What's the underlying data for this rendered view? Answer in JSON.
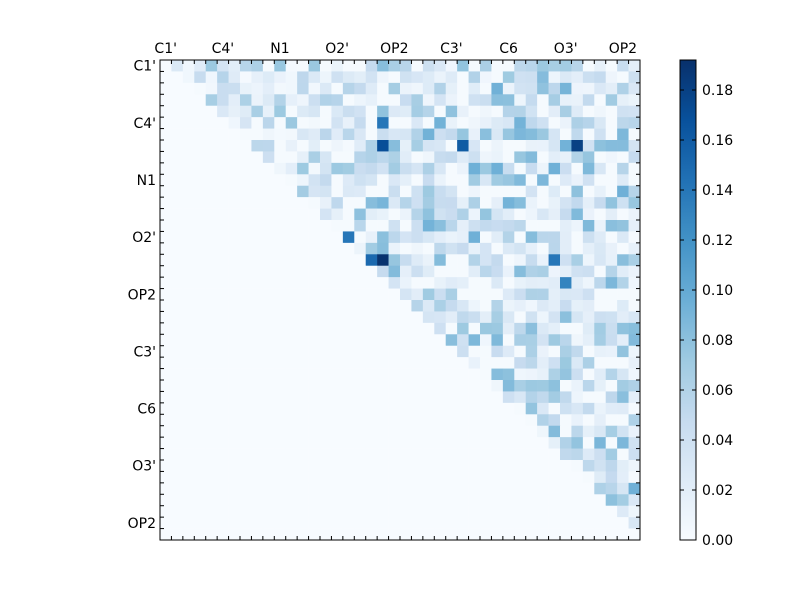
{
  "chart_data": {
    "type": "heatmap",
    "title": "",
    "xlabel": "",
    "ylabel": "",
    "x_tick_labels": [
      "C1'",
      "C4'",
      "N1",
      "O2'",
      "OP2",
      "C3'",
      "C6",
      "O3'",
      "OP2"
    ],
    "y_tick_labels": [
      "C1'",
      "C4'",
      "N1",
      "O2'",
      "OP2",
      "C3'",
      "C6",
      "O3'",
      "OP2"
    ],
    "x_axis_position": "top",
    "grid": false,
    "colormap": "Blues",
    "colorbar": {
      "min": 0.0,
      "max": 0.192,
      "ticks": [
        0.0,
        0.02,
        0.04,
        0.06,
        0.08,
        0.1,
        0.12,
        0.14,
        0.16,
        0.18
      ],
      "tick_labels": [
        "0.00",
        "0.02",
        "0.04",
        "0.06",
        "0.08",
        "0.10",
        "0.12",
        "0.14",
        "0.16",
        "0.18"
      ]
    },
    "grid_size": 42,
    "structure": "upper-triangular matrix; cells below the diagonal are 0",
    "notable_values": [
      {
        "row": 7,
        "col": 19,
        "value": 0.17
      },
      {
        "row": 7,
        "col": 26,
        "value": 0.16
      },
      {
        "row": 7,
        "col": 36,
        "value": 0.18
      },
      {
        "row": 17,
        "col": 19,
        "value": 0.19
      },
      {
        "row": 17,
        "col": 18,
        "value": 0.15
      },
      {
        "row": 15,
        "col": 16,
        "value": 0.14
      },
      {
        "row": 17,
        "col": 34,
        "value": 0.14
      },
      {
        "row": 19,
        "col": 35,
        "value": 0.13
      },
      {
        "row": 5,
        "col": 19,
        "value": 0.14
      }
    ]
  }
}
